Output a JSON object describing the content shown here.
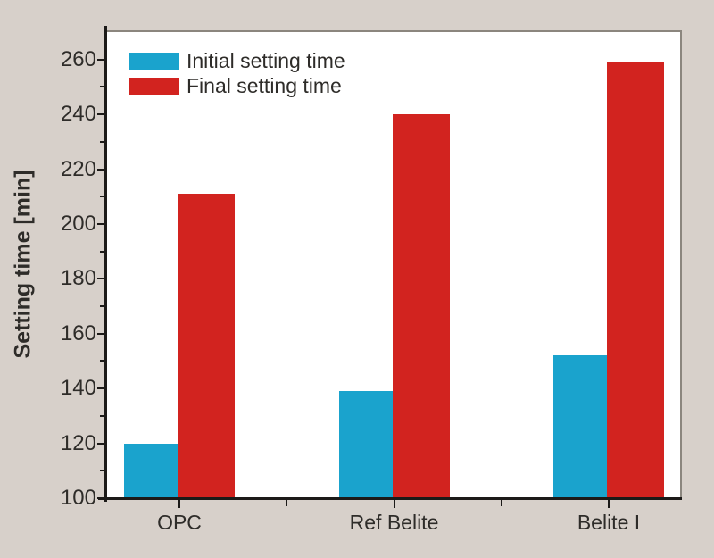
{
  "chart_data": {
    "type": "bar",
    "title": "",
    "categories": [
      "OPC",
      "Ref Belite",
      "Belite I"
    ],
    "series": [
      {
        "name": "Initial setting time",
        "color": "#1aa3cd",
        "values": [
          120,
          139,
          152
        ]
      },
      {
        "name": "Final setting time",
        "color": "#d2231f",
        "values": [
          211,
          240,
          259
        ]
      }
    ],
    "xlabel": "",
    "ylabel": "Setting time [min]",
    "ylim": [
      100,
      270
    ],
    "yticks_major": [
      100,
      120,
      140,
      160,
      180,
      200,
      220,
      240,
      260
    ],
    "yticks_minor": [
      110,
      130,
      150,
      170,
      190,
      210,
      230,
      250
    ],
    "grid": false,
    "legend_position": "top-left",
    "colors": {
      "background": "#d7d0ca",
      "plot_background": "#ffffff",
      "axis": "#1c1a18",
      "frame": "#8b867e",
      "text": "#2e2c29"
    }
  }
}
